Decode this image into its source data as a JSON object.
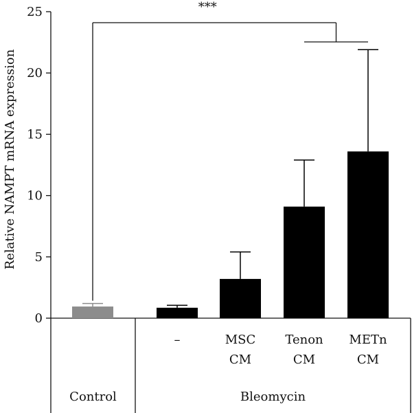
{
  "chart_data": {
    "type": "bar",
    "ylabel": "Relative NAMPT mRNA expression",
    "ylim": [
      0,
      25
    ],
    "yticks": [
      0,
      5,
      10,
      15,
      20,
      25
    ],
    "categories": [
      [
        "",
        ""
      ],
      [
        "–",
        ""
      ],
      [
        "MSC",
        "CM"
      ],
      [
        "Tenon",
        "CM"
      ],
      [
        "METn",
        "CM"
      ]
    ],
    "values": [
      0.95,
      0.85,
      3.2,
      9.1,
      13.6
    ],
    "errors": [
      0.25,
      0.2,
      2.2,
      3.8,
      8.3
    ],
    "colors": [
      "#8c8c8c",
      "#000000",
      "#000000",
      "#000000",
      "#000000"
    ],
    "groups": [
      {
        "label": "Control",
        "members": [
          0
        ]
      },
      {
        "label": "Bleomycin",
        "members": [
          1,
          2,
          3,
          4
        ]
      }
    ],
    "significance": {
      "label": "***",
      "from": [
        0
      ],
      "to": [
        3,
        4
      ]
    }
  }
}
